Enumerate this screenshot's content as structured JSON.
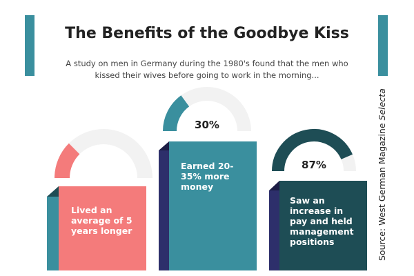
{
  "header": {
    "title": "The Benefits of the Goodbye Kiss",
    "subtitle": "A study on men in Germany during the 1980's found that the men who kissed their wives before going to work in the morning..."
  },
  "source": {
    "text": "Source: West German Magazine ",
    "publication": "Selecta"
  },
  "cards": [
    {
      "text": "Lived an average of 5 years longer",
      "value": 25,
      "color": "#f47b7b"
    },
    {
      "text": "Earned 20-35% more money",
      "value": 30,
      "value_label": "30%",
      "color": "#3a8f9e"
    },
    {
      "text": "Saw an increase in pay and held management positions",
      "value": 87,
      "value_label": "87%",
      "color": "#1e4d55"
    }
  ]
}
